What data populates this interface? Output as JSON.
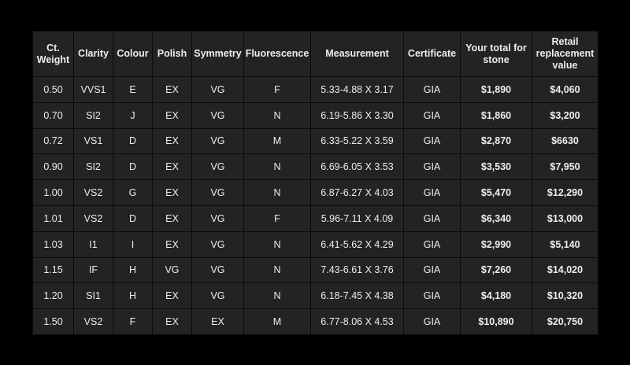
{
  "table": {
    "headers": [
      [
        "Ct.",
        "Weight"
      ],
      [
        "Clarity"
      ],
      [
        "Colour"
      ],
      [
        "Polish"
      ],
      [
        "Symmetry"
      ],
      [
        "Fluorescence"
      ],
      [
        "Measurement"
      ],
      [
        "Certificate"
      ],
      [
        "Your total for",
        "stone"
      ],
      [
        "Retail",
        "replacement",
        "value"
      ]
    ],
    "rows": [
      [
        "0.50",
        "VVS1",
        "E",
        "EX",
        "VG",
        "F",
        "5.33-4.88 X 3.17",
        "GIA",
        "$1,890",
        "$4,060"
      ],
      [
        "0.70",
        "SI2",
        "J",
        "EX",
        "VG",
        "N",
        "6.19-5.86 X 3.30",
        "GIA",
        "$1,860",
        "$3,200"
      ],
      [
        "0.72",
        "VS1",
        "D",
        "EX",
        "VG",
        "M",
        "6.33-5.22 X 3.59",
        "GIA",
        "$2,870",
        "$6630"
      ],
      [
        "0.90",
        "SI2",
        "D",
        "EX",
        "VG",
        "N",
        "6.69-6.05 X 3.53",
        "GIA",
        "$3,530",
        "$7,950"
      ],
      [
        "1.00",
        "VS2",
        "G",
        "EX",
        "VG",
        "N",
        "6.87-6.27 X 4.03",
        "GIA",
        "$5,470",
        "$12,290"
      ],
      [
        "1.01",
        "VS2",
        "D",
        "EX",
        "VG",
        "F",
        "5.96-7.11 X 4.09",
        "GIA",
        "$6,340",
        "$13,000"
      ],
      [
        "1.03",
        "I1",
        "I",
        "EX",
        "VG",
        "N",
        "6.41-5.62 X 4.29",
        "GIA",
        "$2,990",
        "$5,140"
      ],
      [
        "1.15",
        "IF",
        "H",
        "VG",
        "VG",
        "N",
        "7.43-6.61 X 3.76",
        "GIA",
        "$7,260",
        "$14,020"
      ],
      [
        "1.20",
        "SI1",
        "H",
        "EX",
        "VG",
        "N",
        "6.18-7.45 X 4.38",
        "GIA",
        "$4,180",
        "$10,320"
      ],
      [
        "1.50",
        "VS2",
        "F",
        "EX",
        "EX",
        "M",
        "6.77-8.06 X 4.53",
        "GIA",
        "$10,890",
        "$20,750"
      ]
    ]
  },
  "colors": {
    "page_background": "#000000",
    "table_background": "#232323",
    "text": "#ededed"
  }
}
